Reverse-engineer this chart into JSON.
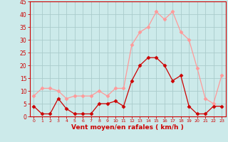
{
  "hours": [
    0,
    1,
    2,
    3,
    4,
    5,
    6,
    7,
    8,
    9,
    10,
    11,
    12,
    13,
    14,
    15,
    16,
    17,
    18,
    19,
    20,
    21,
    22,
    23
  ],
  "wind_avg": [
    4,
    1,
    1,
    7,
    3,
    1,
    1,
    1,
    5,
    5,
    6,
    4,
    14,
    20,
    23,
    23,
    20,
    14,
    16,
    4,
    1,
    1,
    4,
    4
  ],
  "wind_gust": [
    8,
    11,
    11,
    10,
    7,
    8,
    8,
    8,
    10,
    8,
    11,
    11,
    28,
    33,
    35,
    41,
    38,
    41,
    33,
    30,
    19,
    7,
    5,
    16
  ],
  "bg_color": "#cceaea",
  "grid_color": "#aacccc",
  "line_avg_color": "#cc0000",
  "line_gust_color": "#ff9999",
  "xlabel": "Vent moyen/en rafales ( km/h )",
  "xlabel_color": "#cc0000",
  "tick_color": "#cc0000",
  "spine_color": "#cc0000",
  "ylim": [
    0,
    45
  ],
  "yticks": [
    0,
    5,
    10,
    15,
    20,
    25,
    30,
    35,
    40,
    45
  ],
  "xlim": [
    -0.5,
    23.5
  ]
}
